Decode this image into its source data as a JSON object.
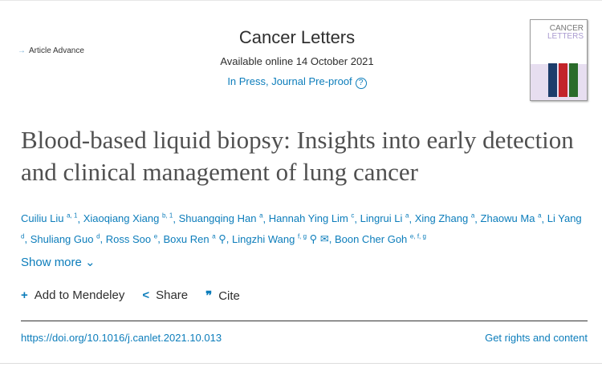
{
  "header": {
    "badge": "Article Advance",
    "journal": "Cancer Letters",
    "available": "Available online 14 October 2021",
    "status": "In Press, Journal Pre-proof",
    "help_icon": "question-circle-icon",
    "cover_text": "CANCER LETTERS"
  },
  "article": {
    "title": "Blood-based liquid biopsy: Insights into early detection and clinical management of lung cancer"
  },
  "authors": [
    {
      "name": "Cuiliu Liu",
      "sup": "a, 1"
    },
    {
      "name": "Xiaoqiang Xiang",
      "sup": "b, 1"
    },
    {
      "name": "Shuangqing Han",
      "sup": "a"
    },
    {
      "name": "Hannah Ying Lim",
      "sup": "c"
    },
    {
      "name": "Lingrui Li",
      "sup": "a"
    },
    {
      "name": "Xing Zhang",
      "sup": "a"
    },
    {
      "name": "Zhaowu Ma",
      "sup": "a"
    },
    {
      "name": "Li Yang",
      "sup": "d"
    },
    {
      "name": "Shuliang Guo",
      "sup": "d"
    },
    {
      "name": "Ross Soo",
      "sup": "e"
    },
    {
      "name": "Boxu Ren",
      "sup": "a"
    },
    {
      "name": "Lingzhi Wang",
      "sup": "f, g"
    },
    {
      "name": "Boon Cher Goh",
      "sup": "e, f, g"
    }
  ],
  "show_more": "Show more",
  "actions": {
    "mendeley": "Add to Mendeley",
    "share": "Share",
    "cite": "Cite"
  },
  "doi": "https://doi.org/10.1016/j.canlet.2021.10.013",
  "rights": "Get rights and content",
  "colors": {
    "link": "#0c7dbb"
  }
}
